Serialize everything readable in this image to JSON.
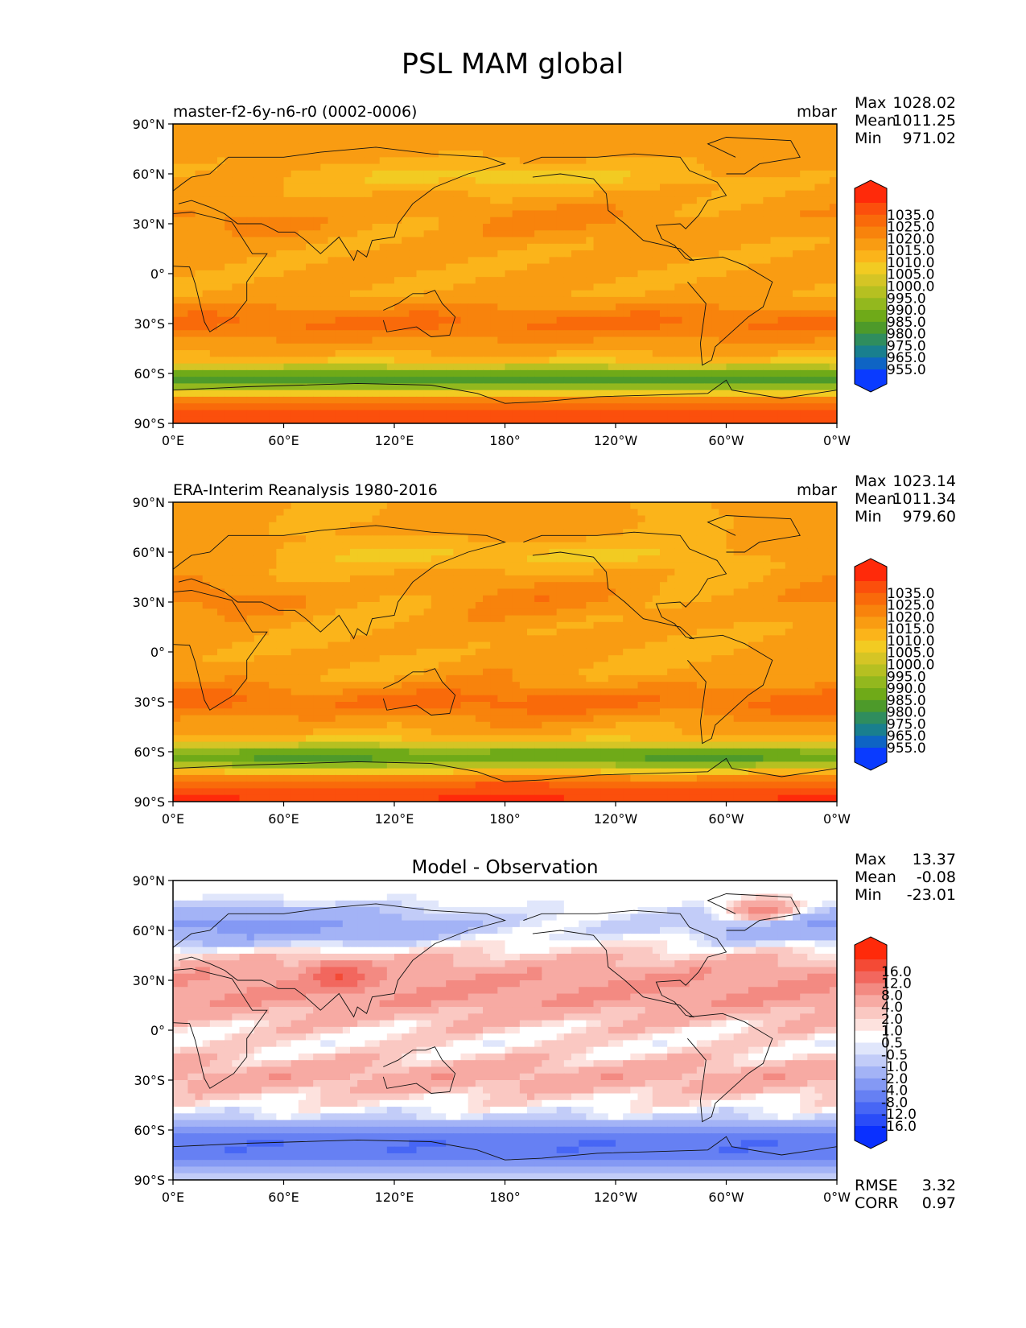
{
  "page": {
    "title": "PSL MAM global"
  },
  "axes": {
    "lon_ticks": [
      "0°E",
      "60°E",
      "120°E",
      "180°",
      "120°W",
      "60°W",
      "0°W"
    ],
    "lat_ticks": [
      "90°N",
      "60°N",
      "30°N",
      "0°",
      "30°S",
      "60°S",
      "90°S"
    ]
  },
  "panels": [
    {
      "id": "model",
      "left_title": "master-f2-6y-n6-r0 (0002-0006)",
      "center_title": "",
      "units": "mbar",
      "stats": [
        {
          "label": "Max",
          "value": "1028.02"
        },
        {
          "label": "Mean",
          "value": "1011.25"
        },
        {
          "label": "Min",
          "value": "971.02"
        }
      ],
      "colorbar": {
        "labels": [
          "1035.0",
          "1025.0",
          "1020.0",
          "1015.0",
          "1010.0",
          "1005.0",
          "1000.0",
          "995.0",
          "990.0",
          "985.0",
          "980.0",
          "975.0",
          "965.0",
          "955.0"
        ],
        "colors": [
          "#ff2a0a",
          "#fb4f0c",
          "#f96a0a",
          "#f8830c",
          "#f99c12",
          "#fbb41a",
          "#f2cb22",
          "#d5c525",
          "#b6c021",
          "#93b81e",
          "#6faa18",
          "#4d9a2a",
          "#2f8d5e",
          "#197f8e",
          "#0e64c4",
          "#0a3bff"
        ]
      }
    },
    {
      "id": "obs",
      "left_title": "ERA-Interim Reanalysis 1980-2016",
      "center_title": "",
      "units": "mbar",
      "stats": [
        {
          "label": "Max",
          "value": "1023.14"
        },
        {
          "label": "Mean",
          "value": "1011.34"
        },
        {
          "label": "Min",
          "value": "979.60"
        }
      ],
      "colorbar": {
        "labels": [
          "1035.0",
          "1025.0",
          "1020.0",
          "1015.0",
          "1010.0",
          "1005.0",
          "1000.0",
          "995.0",
          "990.0",
          "985.0",
          "980.0",
          "975.0",
          "965.0",
          "955.0"
        ],
        "colors": [
          "#ff2a0a",
          "#fb4f0c",
          "#f96a0a",
          "#f8830c",
          "#f99c12",
          "#fbb41a",
          "#f2cb22",
          "#d5c525",
          "#b6c021",
          "#93b81e",
          "#6faa18",
          "#4d9a2a",
          "#2f8d5e",
          "#197f8e",
          "#0e64c4",
          "#0a3bff"
        ]
      }
    },
    {
      "id": "diff",
      "left_title": "",
      "center_title": "Model - Observation",
      "units": "",
      "stats": [
        {
          "label": "Max",
          "value": "13.37"
        },
        {
          "label": "Mean",
          "value": "-0.08"
        },
        {
          "label": "Min",
          "value": "-23.01"
        }
      ],
      "extra_stats": [
        {
          "label": "RMSE",
          "value": "3.32"
        },
        {
          "label": "CORR",
          "value": "0.97"
        }
      ],
      "colorbar": {
        "labels": [
          "16.0",
          "12.0",
          "8.0",
          "4.0",
          "2.0",
          "1.0",
          "0.5",
          "-0.5",
          "-1.0",
          "-2.0",
          "-4.0",
          "-8.0",
          "-12.0",
          "-16.0"
        ],
        "colors": [
          "#ff2a0a",
          "#f44a35",
          "#f2675e",
          "#f38a82",
          "#f7aaa3",
          "#fac8c2",
          "#fde2de",
          "#ffffff",
          "#e0e6fb",
          "#c2ccf8",
          "#a3b3f6",
          "#8499f4",
          "#6680f3",
          "#4766f5",
          "#2a4cf8",
          "#0a30ff"
        ]
      }
    }
  ]
}
